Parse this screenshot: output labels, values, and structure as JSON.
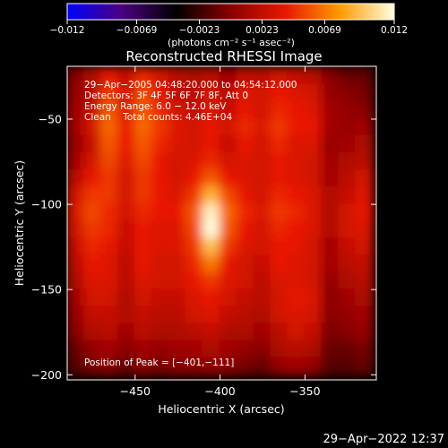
{
  "chart_data": {
    "type": "heatmap",
    "title": "Reconstructed RHESSI Image",
    "xlabel": "Heliocentric X (arcsec)",
    "ylabel": "Heliocentric Y (arcsec)",
    "xlim": [
      -490,
      -308
    ],
    "ylim": [
      -203,
      -19
    ],
    "x_ticks": [
      -450,
      -400,
      -350
    ],
    "x_tick_labels": [
      "−450",
      "−400",
      "−350"
    ],
    "y_ticks": [
      -50,
      -100,
      -150,
      -200
    ],
    "y_tick_labels": [
      "−50",
      "−100",
      "−150",
      "−200"
    ],
    "colorbar": {
      "range": [
        -0.012,
        0.012
      ],
      "ticks": [
        -0.012,
        -0.0069,
        -0.0023,
        0.0023,
        0.0069,
        0.012
      ],
      "tick_labels": [
        "−0.012",
        "−0.0069",
        "−0.0023",
        "0.0023",
        "0.0069",
        "0.012"
      ],
      "unit_label": "(photons cm⁻² s⁻¹ asec⁻²)",
      "colors": [
        "#0000ff",
        "#4b0080",
        "#000000",
        "#8a0000",
        "#e81800",
        "#ff9a00",
        "#ffffe0"
      ]
    },
    "annotations": [
      "29−Apr−2005 04:48:20.000 to 04:54:12.000",
      "Detectors: 3F 4F 5F 6F 7F 8F, Att 0",
      "Energy Range: 6.0 − 12.0 keV",
      "Clean    Total counts: 4.46E+04"
    ],
    "peak_label": "Position of Peak = [−401,−111]",
    "peak": {
      "x": -401,
      "y": -111,
      "value": 0.012
    },
    "intensity_map": {
      "x": [
        -485,
        -475,
        -465,
        -455,
        -445,
        -435,
        -425,
        -415,
        -405,
        -395,
        -385,
        -375,
        -365,
        -355,
        -345,
        -335,
        -325,
        -315
      ],
      "y": [
        -25,
        -35,
        -45,
        -55,
        -65,
        -75,
        -85,
        -95,
        -105,
        -115,
        -125,
        -135,
        -145,
        -155,
        -165,
        -175,
        -185,
        -195
      ],
      "values": [
        [
          0.0,
          0.0015,
          0.004,
          0.0025,
          0.0045,
          0.003,
          0.002,
          0.0015,
          0.002,
          0.001,
          0.0025,
          0.002,
          0.003,
          0.0025,
          0.002,
          0.0,
          -0.001,
          -0.001
        ],
        [
          0.0005,
          0.002,
          0.005,
          0.003,
          0.0055,
          0.004,
          0.0025,
          0.002,
          0.003,
          0.002,
          0.0035,
          0.003,
          0.004,
          0.0035,
          0.003,
          0.0005,
          0.0,
          -0.0005
        ],
        [
          0.001,
          0.0025,
          0.006,
          0.0035,
          0.006,
          0.0045,
          0.003,
          0.0025,
          0.0035,
          0.0025,
          0.004,
          0.003,
          0.0045,
          0.004,
          0.0035,
          0.001,
          0.0005,
          0.0
        ],
        [
          0.001,
          0.003,
          0.0065,
          0.004,
          0.0065,
          0.005,
          0.0035,
          0.003,
          0.004,
          0.003,
          0.0045,
          0.0035,
          0.005,
          0.004,
          0.004,
          0.001,
          0.0005,
          0.001
        ],
        [
          0.0005,
          0.0025,
          0.006,
          0.004,
          0.006,
          0.0045,
          0.0035,
          0.003,
          0.004,
          0.0025,
          0.004,
          0.003,
          0.0045,
          0.0035,
          0.0035,
          0.0005,
          0.001,
          0.0015
        ],
        [
          0.001,
          0.003,
          0.0055,
          0.0035,
          0.0055,
          0.004,
          0.003,
          0.0035,
          0.0045,
          0.003,
          0.0035,
          0.003,
          0.004,
          0.0035,
          0.003,
          0.001,
          0.0015,
          0.002
        ],
        [
          0.002,
          0.004,
          0.005,
          0.003,
          0.005,
          0.004,
          0.003,
          0.004,
          0.006,
          0.004,
          0.0035,
          0.003,
          0.004,
          0.0035,
          0.003,
          0.001,
          0.002,
          0.003
        ],
        [
          0.003,
          0.005,
          0.005,
          0.003,
          0.005,
          0.004,
          0.0035,
          0.005,
          0.009,
          0.0055,
          0.004,
          0.003,
          0.0045,
          0.004,
          0.0035,
          0.0015,
          0.0025,
          0.0035
        ],
        [
          0.0035,
          0.0055,
          0.0045,
          0.003,
          0.0045,
          0.004,
          0.004,
          0.006,
          0.0115,
          0.0065,
          0.0045,
          0.0035,
          0.005,
          0.0045,
          0.0035,
          0.0015,
          0.003,
          0.004
        ],
        [
          0.003,
          0.005,
          0.0045,
          0.0025,
          0.004,
          0.0035,
          0.0035,
          0.0055,
          0.012,
          0.006,
          0.004,
          0.003,
          0.0045,
          0.004,
          0.0035,
          0.0015,
          0.003,
          0.0035
        ],
        [
          0.0025,
          0.0045,
          0.004,
          0.0025,
          0.004,
          0.0035,
          0.0035,
          0.005,
          0.0095,
          0.005,
          0.0035,
          0.003,
          0.004,
          0.004,
          0.003,
          0.001,
          0.0025,
          0.003
        ],
        [
          0.002,
          0.004,
          0.0035,
          0.002,
          0.004,
          0.003,
          0.003,
          0.0045,
          0.007,
          0.004,
          0.003,
          0.0025,
          0.004,
          0.0035,
          0.003,
          0.001,
          0.002,
          0.0025
        ],
        [
          0.0015,
          0.0035,
          0.0035,
          0.002,
          0.0035,
          0.003,
          0.003,
          0.004,
          0.005,
          0.0035,
          0.003,
          0.002,
          0.0035,
          0.0035,
          0.003,
          0.0005,
          0.0015,
          0.002
        ],
        [
          0.001,
          0.003,
          0.003,
          0.0015,
          0.003,
          0.0025,
          0.0025,
          0.0035,
          0.004,
          0.003,
          0.0025,
          0.002,
          0.003,
          0.004,
          0.0035,
          0.0,
          0.001,
          0.0015
        ],
        [
          0.0005,
          0.0025,
          0.0025,
          0.0015,
          0.0025,
          0.002,
          0.002,
          0.003,
          0.0035,
          0.0025,
          0.002,
          0.0015,
          0.003,
          0.0035,
          0.003,
          0.0,
          0.0005,
          0.001
        ],
        [
          0.0,
          0.0015,
          0.002,
          0.001,
          0.002,
          0.0015,
          0.0015,
          0.002,
          0.0025,
          0.0015,
          0.0015,
          0.001,
          0.002,
          0.003,
          0.0025,
          -0.0005,
          0.0,
          0.0005
        ],
        [
          -0.001,
          0.0005,
          0.001,
          0.0,
          0.001,
          0.0005,
          0.001,
          0.001,
          0.0015,
          0.001,
          0.0005,
          0.0,
          0.0015,
          0.002,
          0.0015,
          -0.001,
          -0.001,
          -0.0005
        ],
        [
          -0.0015,
          -0.0005,
          0.0,
          -0.001,
          0.0,
          -0.0005,
          0.0,
          0.0,
          0.0005,
          0.0,
          -0.0005,
          -0.001,
          0.0005,
          0.001,
          0.0005,
          -0.0015,
          -0.0015,
          -0.001
        ]
      ]
    }
  },
  "footer": {
    "timestamp": "29−Apr−2022 12:37"
  }
}
